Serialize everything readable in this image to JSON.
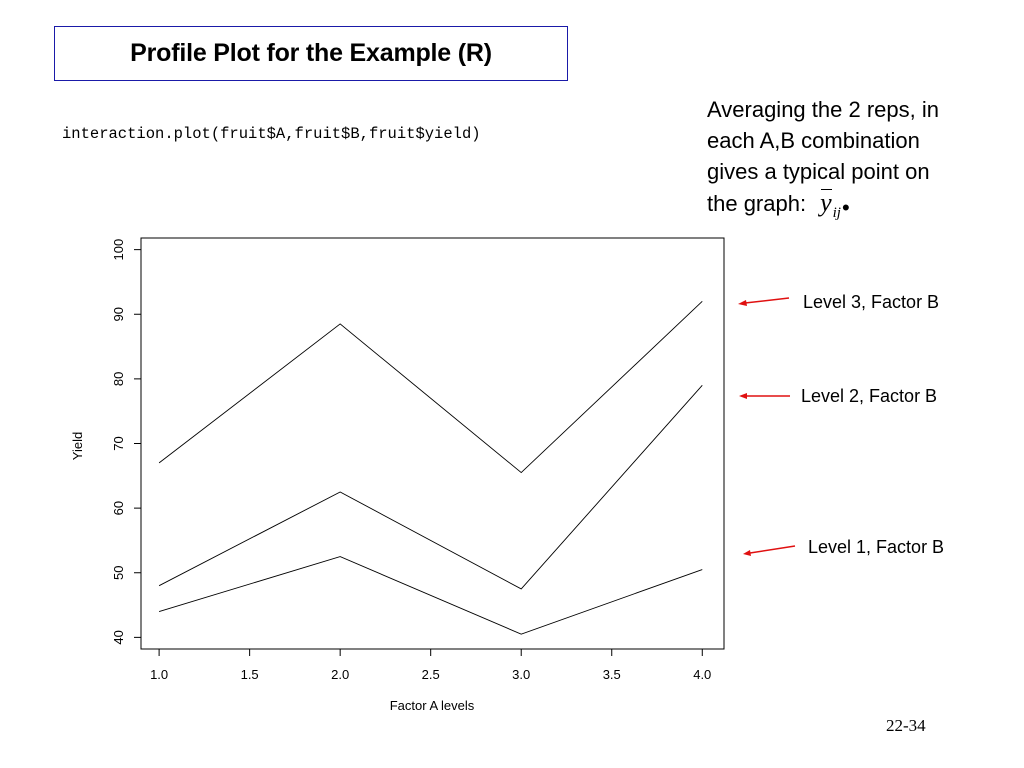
{
  "slide": {
    "title": "Profile Plot for the Example (R)",
    "code": "interaction.plot(fruit$A,fruit$B,fruit$yield)",
    "note_lines": [
      "Averaging the 2 reps, in",
      "each A,B combination",
      "gives a typical point on",
      "the graph:"
    ],
    "formula": {
      "symbol": "y",
      "subscript": "ij",
      "dot": "•"
    },
    "slide_number": "22-34",
    "annotations": [
      {
        "label": "Level 3, Factor B",
        "arrow_color": "#e01010"
      },
      {
        "label": "Level 2, Factor B",
        "arrow_color": "#e01010"
      },
      {
        "label": "Level 1, Factor B",
        "arrow_color": "#e01010"
      }
    ]
  },
  "chart_data": {
    "type": "line",
    "xlabel": "Factor A levels",
    "ylabel": "Yield",
    "x": [
      1,
      2,
      3,
      4
    ],
    "xlim": [
      0.9,
      4.12
    ],
    "ylim": [
      38.2,
      101.8
    ],
    "xticks": [
      1.0,
      1.5,
      2.0,
      2.5,
      3.0,
      3.5,
      4.0
    ],
    "xtick_labels": [
      "1.0",
      "1.5",
      "2.0",
      "2.5",
      "3.0",
      "3.5",
      "4.0"
    ],
    "yticks": [
      40,
      50,
      60,
      70,
      80,
      90,
      100
    ],
    "ytick_labels": [
      "40",
      "50",
      "60",
      "70",
      "80",
      "90",
      "100"
    ],
    "grid": false,
    "line_color": "#000000",
    "series": [
      {
        "values": [
          67.0,
          88.5,
          65.5,
          92.0
        ]
      },
      {
        "values": [
          48.0,
          62.5,
          47.5,
          79.0
        ]
      },
      {
        "values": [
          44.0,
          52.5,
          40.5,
          50.5
        ]
      }
    ]
  }
}
